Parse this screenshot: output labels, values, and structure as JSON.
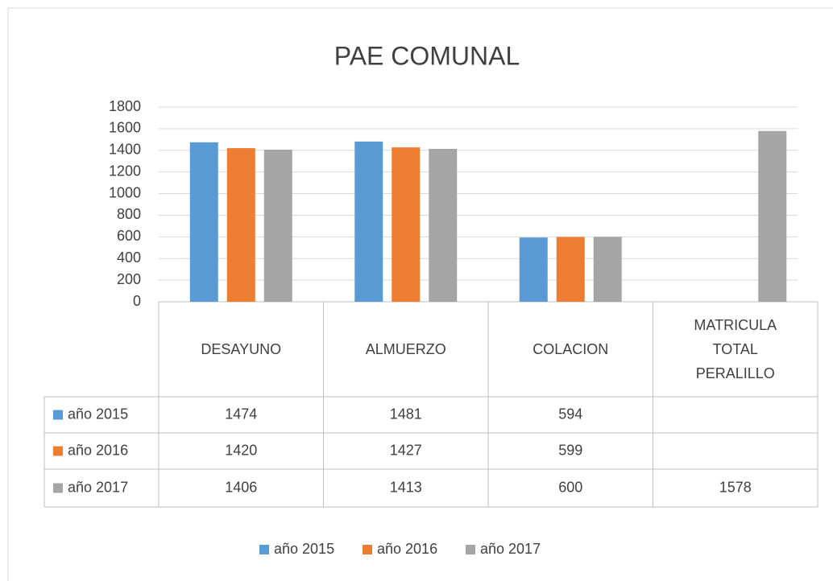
{
  "chart_data": {
    "type": "bar",
    "title": "PAE COMUNAL",
    "categories": [
      "DESAYUNO",
      "ALMUERZO",
      "COLACION",
      "MATRICULA TOTAL PERALILLO"
    ],
    "series": [
      {
        "name": "año 2015",
        "color": "#5b9bd5",
        "values": [
          1474,
          1481,
          594,
          null
        ]
      },
      {
        "name": "año 2016",
        "color": "#ed7d31",
        "values": [
          1420,
          1427,
          599,
          null
        ]
      },
      {
        "name": "año 2017",
        "color": "#a5a5a5",
        "values": [
          1406,
          1413,
          600,
          1578
        ]
      }
    ],
    "ylim": [
      0,
      1800
    ],
    "yticks": [
      0,
      200,
      400,
      600,
      800,
      1000,
      1200,
      1400,
      1600,
      1800
    ],
    "grid": true,
    "legend": "bottom"
  }
}
